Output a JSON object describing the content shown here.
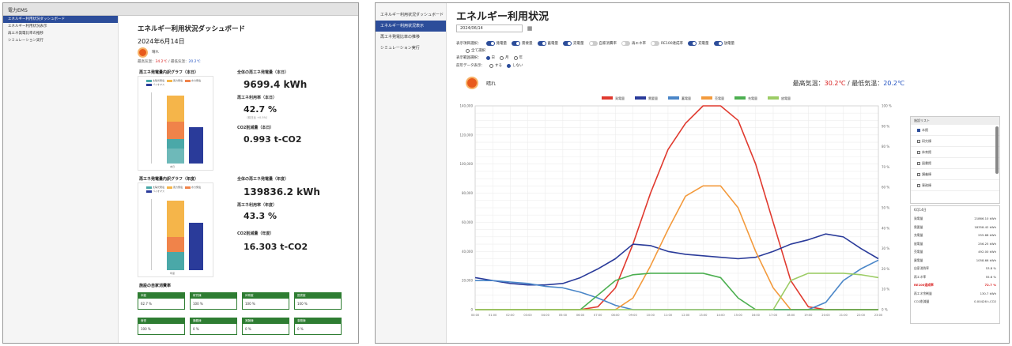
{
  "colors": {
    "accent": "#2c4d9a",
    "green": "#2e7d32",
    "red": "#e03a2f",
    "orange": "#f39a3c",
    "blue": "#4a86c8",
    "navy": "#2a3b9a",
    "green_line": "#4caf50",
    "lime": "#9ccc65",
    "teal": "#4aa8a8"
  },
  "panel1": {
    "app_title": "電力EMS",
    "sidebar": [
      "エネルギー利用状況ダッシュボード",
      "エネルギー利用状況表示",
      "再エネ発電比率の推移",
      "シミュレーション実行"
    ],
    "title": "エネルギー利用状況ダッシュボード",
    "date": "2024年6月14日",
    "weather": "晴れ",
    "temp_prefix": "最高気温：",
    "temp_high": "34.2℃",
    "temp_mid": " / 最低気温：",
    "temp_low": "20.2℃",
    "daily": {
      "chart_title": "再エネ発電量内訳グラフ（本日）",
      "legend": [
        "太陽光発電",
        "風力発電",
        "水力発電",
        "バイオマス"
      ],
      "total_label": "全体の再エネ発電量（本日）",
      "total_value": "9699.4 kWh",
      "rate_label": "再エネ利用率（本日）",
      "rate_value": "42.7 %",
      "rate_sub": "（前日比 +0.5%）",
      "co2_label": "CO2削減量（本日）",
      "co2_value": "0.993 t-CO2",
      "axis_label": "本日"
    },
    "yearly": {
      "chart_title": "再エネ発電量内訳グラフ（年度）",
      "legend": [
        "太陽光発電",
        "風力発電",
        "水力発電",
        "バイオマス"
      ],
      "total_label": "全体の再エネ発電量（年度）",
      "total_value": "139836.2 kWh",
      "rate_label": "再エネ利用率（年度）",
      "rate_value": "43.3 %",
      "co2_label": "CO2削減量（年度）",
      "co2_value": "16.303 t-CO2",
      "axis_label": "年度"
    },
    "rates_title": "施設の自家消費率",
    "rate_cards": [
      {
        "name": "本館",
        "value": "62.7 %"
      },
      {
        "name": "研究棟",
        "value": "100 %"
      },
      {
        "name": "体育館",
        "value": "100 %"
      },
      {
        "name": "図書館",
        "value": "100 %"
      },
      {
        "name": "食堂",
        "value": "100 %"
      },
      {
        "name": "講義棟",
        "value": "0 %"
      },
      {
        "name": "実験棟",
        "value": "0 %"
      },
      {
        "name": "事務棟",
        "value": "0 %"
      }
    ]
  },
  "panel2": {
    "sidebar": [
      "エネルギー利用状況ダッシュボード",
      "エネルギー利用状況表示",
      "再エネ発電比率の推移",
      "シミュレーション実行"
    ],
    "title": "エネルギー利用状況",
    "date_value": "2024/06/14",
    "row1_label": "表示項目選択：",
    "row1_items": [
      "発電量",
      "需要量",
      "蓄電量",
      "売電量",
      "自家消費率",
      "再エネ率",
      "RE100達成率",
      "充電量",
      "放電量"
    ],
    "row1_tail": "全て選択",
    "row2_label": "表示範囲選択：",
    "row2_items": [
      "日",
      "月",
      "年"
    ],
    "row3_label": "前年データ表示：",
    "row3_items": [
      "する",
      "しない"
    ],
    "weather": "晴れ",
    "temp_high_label": "最高気温：",
    "temp_high": "30.2℃",
    "temp_sep": " / 最低気温：",
    "temp_low": "20.2℃",
    "list_title": "施設リスト",
    "list_items": [
      "本館",
      "研究棟",
      "体育館",
      "図書館",
      "講義棟",
      "事務棟"
    ],
    "summary_title": "6月14日",
    "summary": [
      {
        "k": "発電量",
        "v": "21866.10 kWh",
        "red": false
      },
      {
        "k": "需要量",
        "v": "18358.42 kWh",
        "red": false
      },
      {
        "k": "充電量",
        "v": "255.68 kWh",
        "red": false
      },
      {
        "k": "放電量",
        "v": "256.25 kWh",
        "red": false
      },
      {
        "k": "売電量",
        "v": "492.00 kWh",
        "red": false
      },
      {
        "k": "買電量",
        "v": "1058.66 kWh",
        "red": false
      },
      {
        "k": "自家消費率",
        "v": "53.8 %",
        "red": false
      },
      {
        "k": "再エネ率",
        "v": "55.6 %",
        "red": false
      },
      {
        "k": "RE100達成率",
        "v": "72.7 %",
        "red": true
      },
      {
        "k": "再エネ余剰量",
        "v": "130.7 kWh",
        "red": false
      },
      {
        "k": "CO2削減量",
        "v": "0.00426 t-CO2",
        "red": false
      }
    ]
  },
  "chart_data": {
    "type": "line",
    "x": [
      "00:00",
      "01:00",
      "02:00",
      "03:00",
      "04:00",
      "05:00",
      "06:00",
      "07:00",
      "08:00",
      "09:00",
      "10:00",
      "11:00",
      "12:00",
      "13:00",
      "14:00",
      "15:00",
      "16:00",
      "17:00",
      "18:00",
      "19:00",
      "20:00",
      "21:00",
      "22:00",
      "23:00"
    ],
    "legend": [
      "発電量",
      "需要量",
      "蓄電量",
      "売電量",
      "充電量",
      "放電量"
    ],
    "ylim_left": [
      0,
      140000
    ],
    "left_ticks": [
      0,
      20000,
      40000,
      60000,
      80000,
      100000,
      120000,
      140000
    ],
    "right_ticks": [
      "0 %",
      "10 %",
      "20 %",
      "30 %",
      "40 %",
      "50 %",
      "60 %",
      "70 %",
      "80 %",
      "90 %",
      "100 %"
    ],
    "grid": true,
    "legend_position": "top",
    "series": [
      {
        "name": "発電量",
        "color": "#e03a2f",
        "values": [
          0,
          0,
          0,
          0,
          0,
          0,
          0,
          2000,
          15000,
          45000,
          80000,
          110000,
          128000,
          140000,
          140000,
          130000,
          100000,
          60000,
          20000,
          2000,
          0,
          0,
          0,
          0
        ]
      },
      {
        "name": "需要量",
        "color": "#2a3b9a",
        "values": [
          22000,
          20000,
          18000,
          17000,
          17000,
          18000,
          22000,
          28000,
          35000,
          45000,
          44000,
          40000,
          38000,
          37000,
          36000,
          35000,
          36000,
          40000,
          45000,
          48000,
          52000,
          50000,
          42000,
          35000
        ]
      },
      {
        "name": "蓄電量",
        "color": "#4a86c8",
        "values": [
          20000,
          20000,
          19000,
          18000,
          16000,
          15000,
          12000,
          8000,
          3000,
          0,
          0,
          0,
          0,
          0,
          0,
          0,
          0,
          0,
          0,
          0,
          5000,
          20000,
          28000,
          34000
        ]
      },
      {
        "name": "売電量",
        "color": "#f39a3c",
        "values": [
          0,
          0,
          0,
          0,
          0,
          0,
          0,
          0,
          0,
          8000,
          30000,
          55000,
          78000,
          85000,
          85000,
          70000,
          40000,
          15000,
          0,
          0,
          0,
          0,
          0,
          0
        ]
      },
      {
        "name": "充電量",
        "color": "#4caf50",
        "values": [
          0,
          0,
          0,
          0,
          0,
          0,
          0,
          10000,
          20000,
          24000,
          25000,
          25000,
          25000,
          25000,
          22000,
          8000,
          0,
          0,
          0,
          0,
          0,
          0,
          0,
          0
        ]
      },
      {
        "name": "放電量",
        "color": "#9ccc65",
        "values": [
          0,
          0,
          0,
          0,
          0,
          0,
          0,
          0,
          0,
          0,
          0,
          0,
          0,
          0,
          0,
          0,
          0,
          0,
          20000,
          25000,
          25000,
          25000,
          24000,
          22000
        ]
      }
    ]
  }
}
